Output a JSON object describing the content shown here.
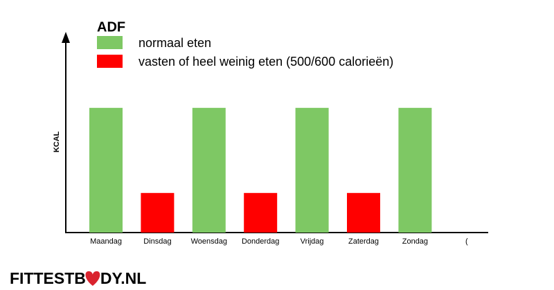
{
  "chart_data": {
    "type": "bar",
    "title": "ADF",
    "y_label": "KCAL",
    "categories": [
      "Maandag",
      "Dinsdag",
      "Woensdag",
      "Donderdag",
      "Vrijdag",
      "Zaterdag",
      "Zondag",
      "("
    ],
    "series": [
      {
        "name": "normaal eten",
        "color": "#7ec864",
        "values": [
          63,
          null,
          63,
          null,
          63,
          null,
          63,
          null
        ]
      },
      {
        "name": "vasten of heel weinig eten (500/600 calorieën)",
        "color": "#ff0000",
        "values": [
          null,
          20,
          null,
          20,
          null,
          20,
          null,
          null
        ]
      }
    ],
    "ylim": [
      0,
      100
    ]
  },
  "logo": {
    "left": "FITTESTB",
    "right": "DY.NL"
  }
}
